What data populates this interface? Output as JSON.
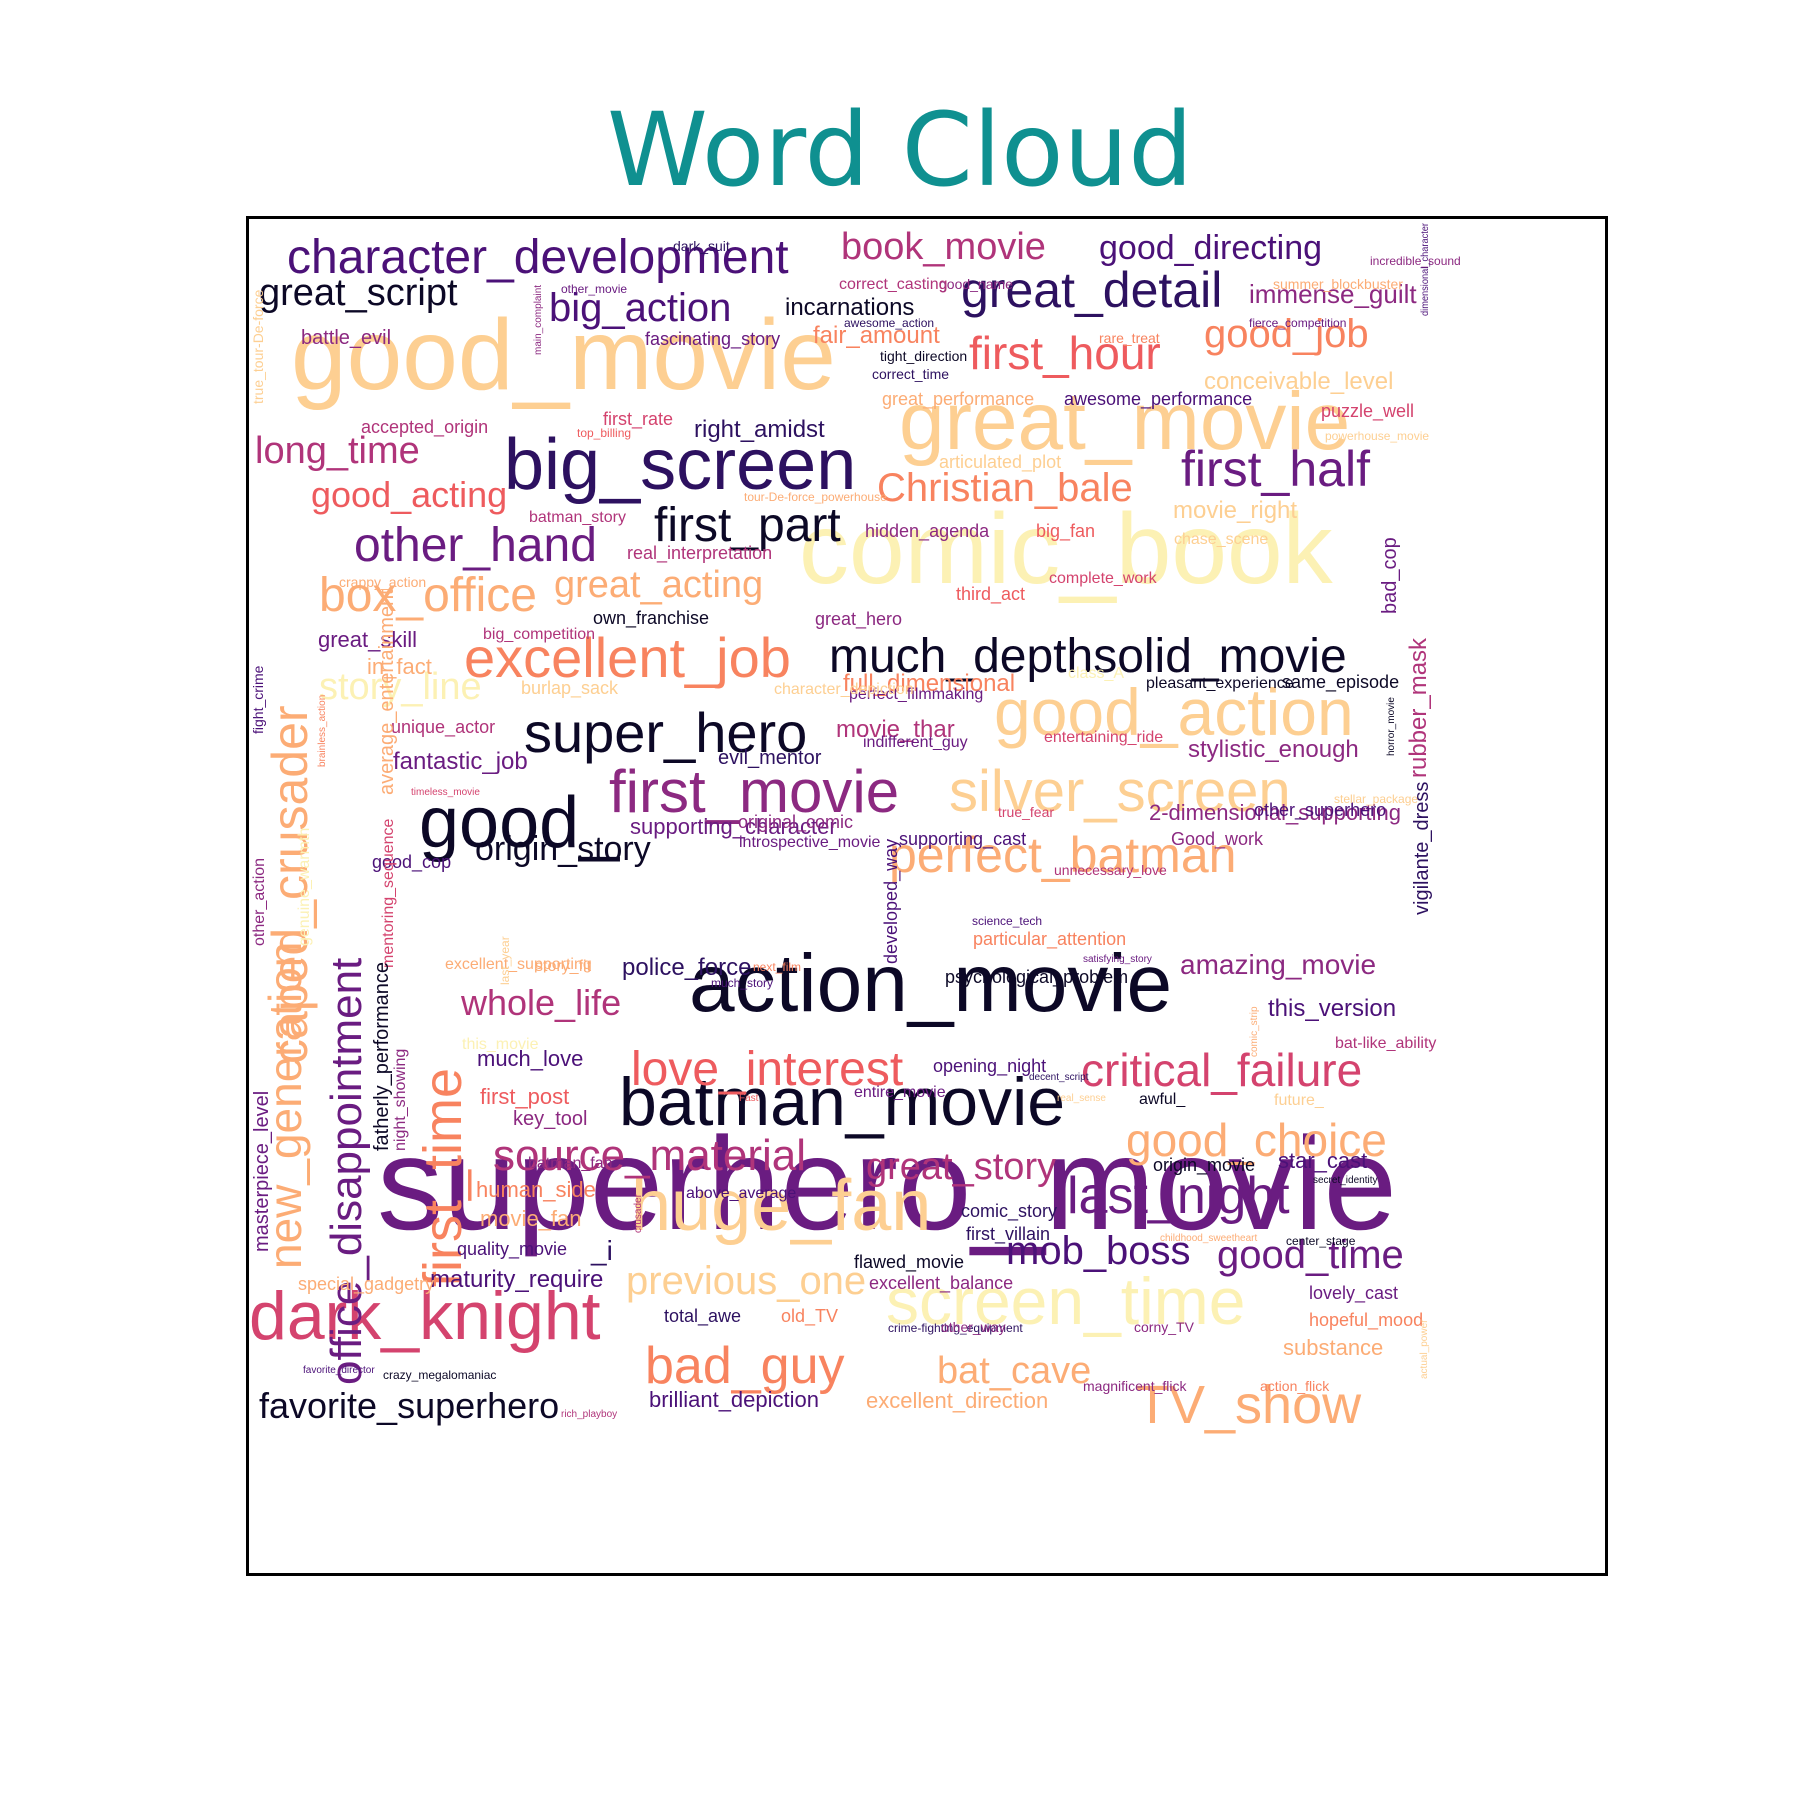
{
  "chart_data": {
    "type": "wordcloud",
    "title": "Word Cloud",
    "title_color": "#0f9090",
    "palette": [
      "#0c0826",
      "#2d1160",
      "#4b1178",
      "#6a1c81",
      "#8c2981",
      "#b0347a",
      "#d4436e",
      "#ee5b5e",
      "#f8835f",
      "#fcac75",
      "#fdcf92",
      "#fcf1b4"
    ],
    "words": [
      {
        "text": "superhero_movie",
        "c": 3
      },
      {
        "text": "comic_book",
        "c": 11
      },
      {
        "text": "good_movie",
        "c": 10
      },
      {
        "text": "action_movie",
        "c": 0
      },
      {
        "text": "great_movie",
        "c": 10
      },
      {
        "text": "big_screen",
        "c": 1
      },
      {
        "text": "good_",
        "c": 0
      },
      {
        "text": "batman_movie",
        "c": 0
      },
      {
        "text": "huge_fan",
        "c": 10
      },
      {
        "text": "dark_knight",
        "c": 6
      },
      {
        "text": "super_hero",
        "c": 0
      },
      {
        "text": "excellent_job",
        "c": 8
      },
      {
        "text": "much_depthsolid_movie",
        "c": 0
      },
      {
        "text": "good_action",
        "c": 10
      },
      {
        "text": "screen_time",
        "c": 11
      },
      {
        "text": "first_movie",
        "c": 4
      },
      {
        "text": "silver_screen",
        "c": 10
      },
      {
        "text": "perfect_batman",
        "c": 9
      },
      {
        "text": "first_part",
        "c": 0
      },
      {
        "text": "character_development",
        "c": 2
      },
      {
        "text": "great_detail",
        "c": 1
      },
      {
        "text": "first_hour",
        "c": 7
      },
      {
        "text": "first_half",
        "c": 3
      },
      {
        "text": "other_hand",
        "c": 3
      },
      {
        "text": "box_office",
        "c": 9
      },
      {
        "text": "love_interest",
        "c": 7
      },
      {
        "text": "critical_failure",
        "c": 6
      },
      {
        "text": "source_material",
        "c": 5
      },
      {
        "text": "last_night",
        "c": 3
      },
      {
        "text": "good_choice",
        "c": 9
      },
      {
        "text": "bad_guy",
        "c": 8
      },
      {
        "text": "TV_show",
        "c": 9
      },
      {
        "text": "caped_crusader",
        "c": 9
      },
      {
        "text": "office_disappointment",
        "c": 3
      },
      {
        "text": "first_time",
        "c": 8
      },
      {
        "text": "new_generation",
        "c": 9
      },
      {
        "text": "good_job",
        "c": 8
      },
      {
        "text": "great_script",
        "c": 0
      },
      {
        "text": "big_action",
        "c": 2
      },
      {
        "text": "book_movie",
        "c": 5
      },
      {
        "text": "Christian_bale",
        "c": 8
      },
      {
        "text": "long_time",
        "c": 5
      },
      {
        "text": "good_acting",
        "c": 7
      },
      {
        "text": "great_acting",
        "c": 9
      },
      {
        "text": "story_line",
        "c": 11
      },
      {
        "text": "origin_story",
        "c": 0
      },
      {
        "text": "whole_life",
        "c": 5
      },
      {
        "text": "great_story",
        "c": 5
      },
      {
        "text": "mob_boss",
        "c": 2
      },
      {
        "text": "good_time",
        "c": 3
      },
      {
        "text": "previous_one",
        "c": 10
      },
      {
        "text": "bat_cave",
        "c": 9
      },
      {
        "text": "favorite_superhero",
        "c": 0
      },
      {
        "text": "good_directing",
        "c": 2
      },
      {
        "text": "immense_guilt",
        "c": 4
      },
      {
        "text": "amazing_movie",
        "c": 4
      },
      {
        "text": "fair_amount",
        "c": 8
      },
      {
        "text": "conceivable_level",
        "c": 10
      },
      {
        "text": "incarnations",
        "c": 0
      },
      {
        "text": "right_amidst",
        "c": 1
      },
      {
        "text": "battle_evil",
        "c": 4
      },
      {
        "text": "accepted_origin",
        "c": 5
      },
      {
        "text": "full_dimensional",
        "c": 8
      },
      {
        "text": "movie_thar",
        "c": 5
      },
      {
        "text": "stylistic_enough",
        "c": 4
      },
      {
        "text": "fantastic_job",
        "c": 3
      },
      {
        "text": "evil_mentor",
        "c": 1
      },
      {
        "text": "supporting_character",
        "c": 3
      },
      {
        "text": "2-dimensional_supporting",
        "c": 4
      },
      {
        "text": "this_version",
        "c": 2
      },
      {
        "text": "police_force",
        "c": 1
      },
      {
        "text": "psychological_problem",
        "c": 0
      },
      {
        "text": "much_love",
        "c": 2
      },
      {
        "text": "key_tool",
        "c": 4
      },
      {
        "text": "human_side",
        "c": 8
      },
      {
        "text": "movie_fan",
        "c": 9
      },
      {
        "text": "quality_movie",
        "c": 2
      },
      {
        "text": "_i",
        "c": 1
      },
      {
        "text": "maturity_require",
        "c": 2
      },
      {
        "text": "star_cast",
        "c": 2
      },
      {
        "text": "origin_movie",
        "c": 0
      },
      {
        "text": "comic_story",
        "c": 1
      },
      {
        "text": "first_villain",
        "c": 1
      },
      {
        "text": "lovely_cast",
        "c": 3
      },
      {
        "text": "hopeful_mood",
        "c": 8
      },
      {
        "text": "substance",
        "c": 9
      },
      {
        "text": "brilliant_depiction",
        "c": 2
      },
      {
        "text": "excellent_direction",
        "c": 9
      },
      {
        "text": "total_awe",
        "c": 1
      },
      {
        "text": "old_TV",
        "c": 8
      },
      {
        "text": "great_skill",
        "c": 3
      },
      {
        "text": "in_fact",
        "c": 9
      },
      {
        "text": "own_franchise",
        "c": 0
      },
      {
        "text": "great_hero",
        "c": 4
      },
      {
        "text": "third_act",
        "c": 7
      },
      {
        "text": "fascinating_story",
        "c": 3
      },
      {
        "text": "great_performance",
        "c": 9
      },
      {
        "text": "awesome_performance",
        "c": 2
      },
      {
        "text": "puzzle_well",
        "c": 6
      },
      {
        "text": "articulated_plot",
        "c": 10
      },
      {
        "text": "movie_right",
        "c": 10
      },
      {
        "text": "big_fan",
        "c": 7
      },
      {
        "text": "hidden_agenda",
        "c": 4
      },
      {
        "text": "batman_story",
        "c": 5
      },
      {
        "text": "first_rate",
        "c": 6
      },
      {
        "text": "real_interpretation",
        "c": 5
      },
      {
        "text": "good_cop",
        "c": 2
      },
      {
        "text": "original_comic",
        "c": 4
      },
      {
        "text": "introspective_movie",
        "c": 3
      },
      {
        "text": "supporting_cast",
        "c": 2
      },
      {
        "text": "other_superhero",
        "c": 2
      },
      {
        "text": "Good_work",
        "c": 4
      },
      {
        "text": "entertaining_ride",
        "c": 6
      },
      {
        "text": "unique_actor",
        "c": 5
      },
      {
        "text": "indifferent_guy",
        "c": 3
      },
      {
        "text": "perfect_filmmaking",
        "c": 3
      },
      {
        "text": "opening_night",
        "c": 2
      },
      {
        "text": "entire_movie",
        "c": 3
      },
      {
        "text": "batman_fan",
        "c": 4
      },
      {
        "text": "above_average",
        "c": 2
      },
      {
        "text": "flawed_movie",
        "c": 0
      },
      {
        "text": "excellent_balance",
        "c": 4
      },
      {
        "text": "special_gadgetry",
        "c": 9
      },
      {
        "text": "bat-like_ability",
        "c": 5
      },
      {
        "text": "awful_",
        "c": 0
      },
      {
        "text": "future_",
        "c": 10
      },
      {
        "text": "particular_attention",
        "c": 8
      },
      {
        "text": "first_post",
        "c": 7
      },
      {
        "text": "this_movie",
        "c": 11
      },
      {
        "text": "excellent_supporting",
        "c": 9
      },
      {
        "text": "story_fit",
        "c": 9
      },
      {
        "text": "true_fear",
        "c": 6
      },
      {
        "text": "crappy_action",
        "c": 9
      },
      {
        "text": "big_competition",
        "c": 5
      },
      {
        "text": "burlap_sack",
        "c": 10
      },
      {
        "text": "character_depiction",
        "c": 10
      },
      {
        "text": "class_A",
        "c": 11
      },
      {
        "text": "pleasant_experience",
        "c": 0
      },
      {
        "text": "same_episode",
        "c": 0
      },
      {
        "text": "chase_scene",
        "c": 10
      },
      {
        "text": "complete_work",
        "c": 6
      },
      {
        "text": "summer_blockbuster",
        "c": 9
      },
      {
        "text": "good_name",
        "c": 4
      },
      {
        "text": "correct_casting",
        "c": 5
      },
      {
        "text": "awesome_action",
        "c": 1
      },
      {
        "text": "rare_treat",
        "c": 8
      },
      {
        "text": "tight_direction",
        "c": 0
      },
      {
        "text": "correct_time",
        "c": 1
      },
      {
        "text": "dark_suit",
        "c": 1
      },
      {
        "text": "other_movie",
        "c": 3
      },
      {
        "text": "incredible_sound",
        "c": 4
      },
      {
        "text": "fierce_competition",
        "c": 3
      },
      {
        "text": "top_billing",
        "c": 7
      },
      {
        "text": "tour-De-force_powerhouse",
        "c": 9
      },
      {
        "text": "powerhouse_movie",
        "c": 10
      },
      {
        "text": "timeless_movie",
        "c": 6
      },
      {
        "text": "stellar_package",
        "c": 10
      },
      {
        "text": "horror_movie",
        "c": 0
      },
      {
        "text": "science_tech",
        "c": 2
      },
      {
        "text": "satisfying_story",
        "c": 3
      },
      {
        "text": "next_film",
        "c": 8
      },
      {
        "text": "much_story",
        "c": 2
      },
      {
        "text": "unnecessary_love",
        "c": 5
      },
      {
        "text": "decent_script",
        "c": 1
      },
      {
        "text": "Fast",
        "c": 7
      },
      {
        "text": "real_sense",
        "c": 10
      },
      {
        "text": "secret_identity",
        "c": 0
      },
      {
        "text": "center_stage",
        "c": 0
      },
      {
        "text": "childhood_sweetheart",
        "c": 9
      },
      {
        "text": "crime-fighting_equipment",
        "c": 1
      },
      {
        "text": "other_way",
        "c": 4
      },
      {
        "text": "corny_TV",
        "c": 4
      },
      {
        "text": "magnificent_flick",
        "c": 4
      },
      {
        "text": "action_flick",
        "c": 8
      },
      {
        "text": "favorite_director",
        "c": 2
      },
      {
        "text": "crazy_megalomaniac",
        "c": 0
      },
      {
        "text": "rich_playboy",
        "c": 5
      },
      {
        "text": "true_tour-De-force",
        "c": 10
      },
      {
        "text": "main_complaint",
        "c": 4
      },
      {
        "text": "fight_crime",
        "c": 2
      },
      {
        "text": "brainless_action",
        "c": 8
      },
      {
        "text": "average_entertainment",
        "c": 9
      },
      {
        "text": "other_action",
        "c": 4
      },
      {
        "text": "last_year",
        "c": 10
      },
      {
        "text": "masterpiece_level",
        "c": 3
      },
      {
        "text": "genuine_warmth",
        "c": 11
      },
      {
        "text": "mentoring_sequence",
        "c": 6
      },
      {
        "text": "fatherly_performance",
        "c": 0
      },
      {
        "text": "night_showing",
        "c": 4
      },
      {
        "text": "crusader",
        "c": 5
      },
      {
        "text": "developed_way",
        "c": 2
      },
      {
        "text": "comic_strip",
        "c": 9
      },
      {
        "text": "bad_cop",
        "c": 3
      },
      {
        "text": "rubber_mask",
        "c": 5
      },
      {
        "text": "vigilante_dress",
        "c": 1
      },
      {
        "text": "dimensional_character",
        "c": 2
      },
      {
        "text": "actual_power",
        "c": 10
      },
      {
        "text": "whimsical",
        "c": 4
      },
      {
        "text": "big_rubber",
        "c": 2
      }
    ]
  }
}
